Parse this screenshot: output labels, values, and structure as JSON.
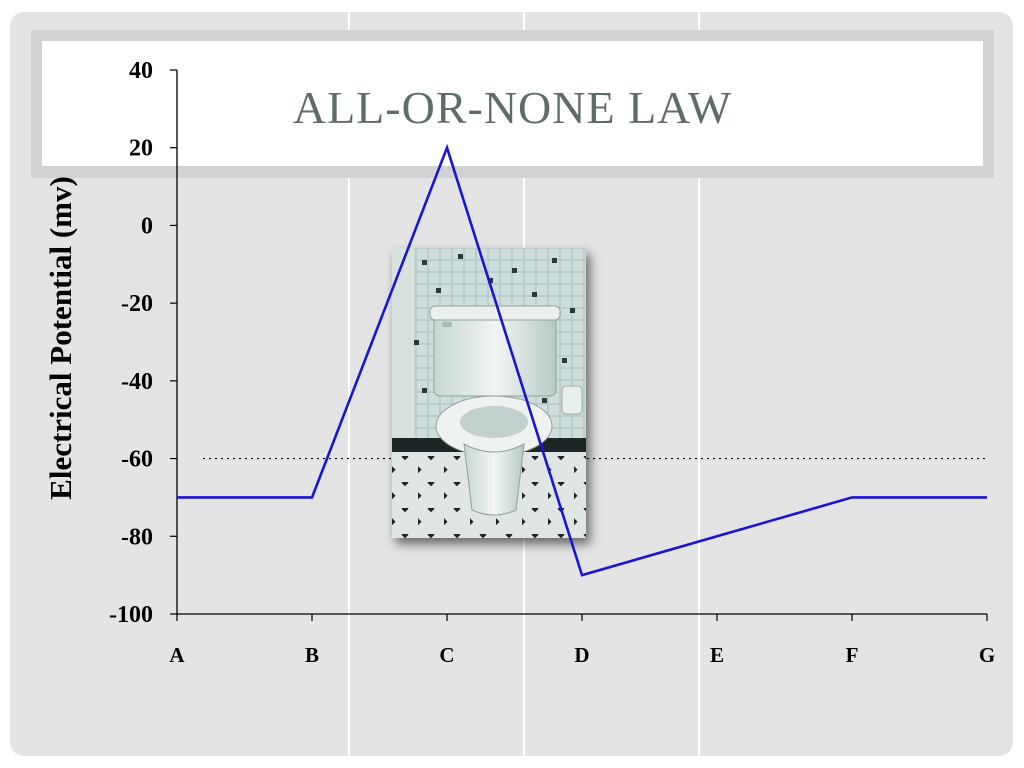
{
  "slide": {
    "title": "ALL-OR-NONE LAW"
  },
  "image": {
    "subject": "toilet-photo"
  },
  "chart_data": {
    "type": "line",
    "categories": [
      "A",
      "B",
      "C",
      "D",
      "E",
      "F",
      "G"
    ],
    "ylabel": "Electrical Potential (mv)",
    "xlabel": "",
    "ylim": [
      -100,
      40
    ],
    "yticks": [
      40,
      20,
      0,
      -20,
      -40,
      -60,
      -80,
      -100
    ],
    "ytick_labels": [
      "40",
      "20",
      "0",
      "-20",
      "-40",
      "-60",
      "-80",
      "-100"
    ],
    "series": [
      {
        "values": [
          -70,
          -70,
          20,
          -90,
          -80,
          -70,
          -70
        ],
        "color": "#1a14d6"
      }
    ],
    "reference_lines": [
      {
        "axis": "y",
        "value": -60,
        "style": "dotted",
        "color": "#000000"
      }
    ],
    "grid": false
  }
}
